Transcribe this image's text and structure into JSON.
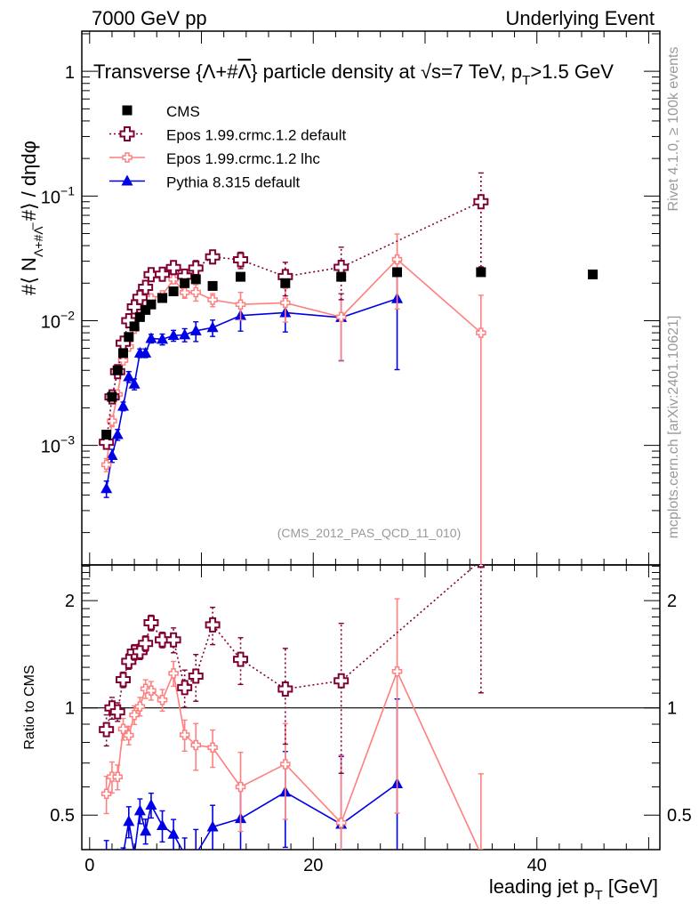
{
  "header": {
    "left": "7000 GeV pp",
    "right": "Underlying Event"
  },
  "side_labels": {
    "rivet": "Rivet 4.1.0, ≥ 100k events",
    "mcplots": "mcplots.cern.ch [arXiv:2401.10621]"
  },
  "analysis_id": "(CMS_2012_PAS_QCD_11_010)",
  "colors": {
    "cms": "#000000",
    "epos_default": "#800033",
    "epos_lhc": "#ff7f7f",
    "pythia": "#0000e6"
  },
  "chart_data": [
    {
      "type": "scatter",
      "panel": "main",
      "title_parts": [
        "Transverse {Λ+#",
        "Λ",
        "} particle density at √s=7 TeV, p",
        "T",
        ">1.5 GeV"
      ],
      "ylabel_parts": [
        "#⟨ N",
        "Λ+#Λ̅",
        " #⟩ / dηdφ"
      ],
      "yscale": "log",
      "ylim": [
        0.00011,
        2.1
      ],
      "xlim": [
        -0.7,
        51
      ],
      "ytick_labels": [
        {
          "v": 0.001,
          "base": "10",
          "exp": "−3"
        },
        {
          "v": 0.01,
          "base": "10",
          "exp": "−2"
        },
        {
          "v": 0.1,
          "base": "10",
          "exp": "−1"
        },
        {
          "v": 1,
          "base": "1",
          "exp": ""
        }
      ],
      "legend_position": "top-left",
      "series": [
        {
          "key": "cms",
          "name": "CMS",
          "marker": "square",
          "line": "none",
          "x": [
            1.5,
            2,
            2.5,
            3,
            3.5,
            4,
            4.5,
            5,
            5.5,
            6.5,
            7.5,
            8.5,
            9.5,
            11,
            13.5,
            17.5,
            22.5,
            27.5,
            35,
            45
          ],
          "y": [
            0.00122,
            0.00245,
            0.004,
            0.0055,
            0.0074,
            0.009,
            0.0107,
            0.0122,
            0.0135,
            0.0152,
            0.0172,
            0.02,
            0.0215,
            0.019,
            0.0225,
            0.02,
            0.0225,
            0.0245,
            0.0245,
            0.0235
          ],
          "rel_err": [
            0.03,
            0.03,
            0.03,
            0.03,
            0.03,
            0.03,
            0.03,
            0.03,
            0.03,
            0.03,
            0.03,
            0.03,
            0.03,
            0.03,
            0.03,
            0.03,
            0.03,
            0.03,
            0.03,
            0.03
          ]
        },
        {
          "key": "epos_default",
          "name": "Epos 1.99.crmc.1.2 default",
          "marker": "open-cross",
          "line": "dotted",
          "x": [
            1.5,
            2,
            2.5,
            3,
            3.5,
            4,
            4.5,
            5,
            5.5,
            6.5,
            7.5,
            8.5,
            9.5,
            11,
            13.5,
            17.5,
            22.5,
            35
          ],
          "y": [
            0.00106,
            0.00245,
            0.0039,
            0.0066,
            0.01,
            0.0129,
            0.0154,
            0.0185,
            0.0234,
            0.0236,
            0.0267,
            0.0228,
            0.0264,
            0.0325,
            0.0308,
            0.0226,
            0.0268,
            0.09
          ],
          "rel_err": [
            0.1,
            0.07,
            0.06,
            0.05,
            0.05,
            0.05,
            0.05,
            0.05,
            0.05,
            0.05,
            0.08,
            0.12,
            0.15,
            0.12,
            0.15,
            0.3,
            0.45,
            0.7
          ]
        },
        {
          "key": "epos_lhc",
          "name": "Epos 1.99.crmc.1.2 lhc",
          "marker": "small-cross",
          "line": "solid",
          "x": [
            1.5,
            2,
            2.5,
            3,
            3.5,
            4,
            4.5,
            5,
            5.5,
            6.5,
            7.5,
            8.5,
            9.5,
            11,
            13.5,
            17.5,
            22.5,
            27.5,
            35
          ],
          "y": [
            0.0007,
            0.00157,
            0.00256,
            0.0048,
            0.0062,
            0.0086,
            0.0108,
            0.0138,
            0.0151,
            0.016,
            0.0215,
            0.0168,
            0.0169,
            0.0147,
            0.0135,
            0.0139,
            0.0107,
            0.031,
            0.008
          ],
          "rel_err": [
            0.12,
            0.1,
            0.08,
            0.07,
            0.06,
            0.06,
            0.06,
            0.06,
            0.06,
            0.07,
            0.08,
            0.1,
            0.15,
            0.12,
            0.25,
            0.3,
            0.55,
            0.6,
            1.0
          ]
        },
        {
          "key": "pythia",
          "name": "Pythia 8.315 default",
          "marker": "triangle",
          "line": "solid",
          "x": [
            1.5,
            2,
            2.5,
            3,
            3.5,
            4,
            4.5,
            5,
            5.5,
            6.5,
            7.5,
            8.5,
            9.5,
            11,
            13.5,
            17.5,
            22.5,
            27.5
          ],
          "y": [
            0.00045,
            0.00083,
            0.00122,
            0.00206,
            0.00355,
            0.0031,
            0.0055,
            0.0055,
            0.0072,
            0.0071,
            0.0076,
            0.0077,
            0.0083,
            0.0088,
            0.011,
            0.0116,
            0.0106,
            0.015
          ],
          "rel_err": [
            0.15,
            0.12,
            0.1,
            0.08,
            0.1,
            0.1,
            0.08,
            0.08,
            0.08,
            0.1,
            0.1,
            0.12,
            0.18,
            0.15,
            0.25,
            0.3,
            0.55,
            0.73
          ]
        }
      ]
    },
    {
      "type": "line",
      "panel": "ratio",
      "ylabel": "Ratio to CMS",
      "xlabel_parts": [
        "leading jet p",
        "T",
        " [GeV]"
      ],
      "yscale": "log",
      "ylim": [
        0.4,
        2.52
      ],
      "xlim": [
        -0.7,
        51
      ],
      "reference": 1,
      "ytick_labels": [
        {
          "v": 0.5,
          "t": "0.5"
        },
        {
          "v": 1,
          "t": "1"
        },
        {
          "v": 2,
          "t": "2"
        }
      ],
      "xtick_labels": [
        {
          "v": 0,
          "t": "0"
        },
        {
          "v": 20,
          "t": "20"
        },
        {
          "v": 40,
          "t": "40"
        }
      ]
    }
  ]
}
